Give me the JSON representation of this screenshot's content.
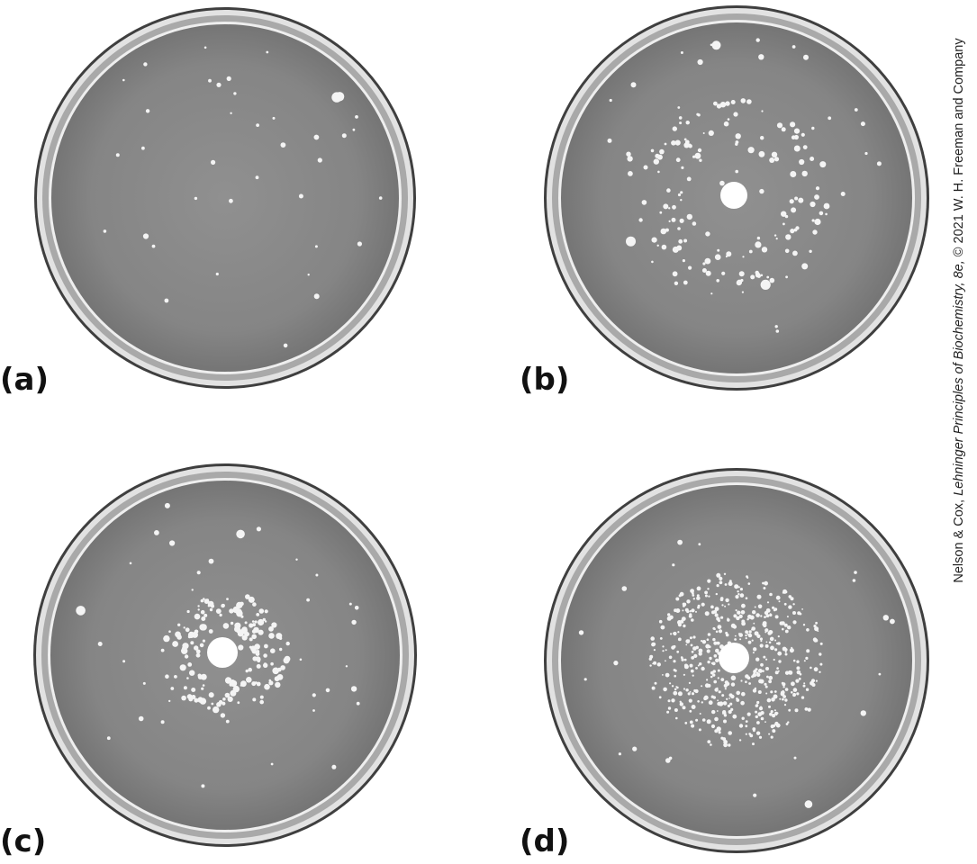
{
  "panels": [
    {
      "label": "(a)",
      "pattern": "sparse"
    },
    {
      "label": "(b)",
      "pattern": "ring-wide"
    },
    {
      "label": "(c)",
      "pattern": "ring-tight"
    },
    {
      "label": "(d)",
      "pattern": "dense-center"
    }
  ],
  "credit": {
    "before": "Nelson & Cox, ",
    "italic": "Lehninger Principles of Biochemistry, 8e,",
    "after": " © 2021 W. H. Freeman and Company"
  },
  "colors": {
    "agar": "#8a8a8a",
    "agar_dark": "#777777",
    "rim": "#e2e2e2",
    "rim_shadow": "#3f3f3f",
    "colony": "#f4f4f4"
  }
}
